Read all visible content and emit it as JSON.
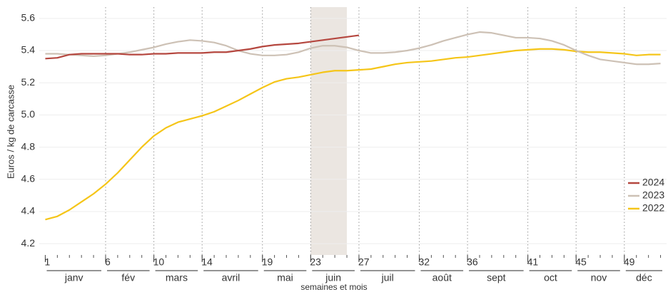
{
  "chart_data": {
    "type": "line",
    "ylabel": "Euros / kg de carcasse",
    "xlabel": "semaines et mois",
    "x": [
      1,
      2,
      3,
      4,
      5,
      6,
      7,
      8,
      9,
      10,
      11,
      12,
      13,
      14,
      15,
      16,
      17,
      18,
      19,
      20,
      21,
      22,
      23,
      24,
      25,
      26,
      27,
      28,
      29,
      30,
      31,
      32,
      33,
      34,
      35,
      36,
      37,
      38,
      39,
      40,
      41,
      42,
      43,
      44,
      45,
      46,
      47,
      48,
      49,
      50,
      51,
      52
    ],
    "series": [
      {
        "name": "2024",
        "color": "#b5473f",
        "values": [
          5.35,
          5.355,
          5.375,
          5.38,
          5.38,
          5.38,
          5.38,
          5.375,
          5.375,
          5.38,
          5.38,
          5.385,
          5.385,
          5.385,
          5.39,
          5.39,
          5.4,
          5.41,
          5.425,
          5.435,
          5.44,
          5.445,
          5.455,
          5.465,
          5.475,
          5.485,
          5.495,
          null,
          null,
          null,
          null,
          null,
          null,
          null,
          null,
          null,
          null,
          null,
          null,
          null,
          null,
          null,
          null,
          null,
          null,
          null,
          null,
          null,
          null,
          null,
          null,
          null
        ]
      },
      {
        "name": "2023",
        "color": "#cdc1b5",
        "values": [
          5.38,
          5.38,
          5.375,
          5.37,
          5.365,
          5.37,
          5.38,
          5.39,
          5.405,
          5.42,
          5.44,
          5.455,
          5.465,
          5.46,
          5.45,
          5.43,
          5.4,
          5.38,
          5.37,
          5.37,
          5.375,
          5.39,
          5.415,
          5.43,
          5.43,
          5.42,
          5.4,
          5.385,
          5.385,
          5.39,
          5.4,
          5.415,
          5.435,
          5.46,
          5.48,
          5.5,
          5.515,
          5.51,
          5.495,
          5.48,
          5.48,
          5.475,
          5.46,
          5.435,
          5.4,
          5.37,
          5.345,
          5.335,
          5.325,
          5.315,
          5.315,
          5.32
        ]
      },
      {
        "name": "2022",
        "color": "#f5c518",
        "values": [
          4.35,
          4.37,
          4.41,
          4.46,
          4.51,
          4.57,
          4.64,
          4.72,
          4.8,
          4.87,
          4.92,
          4.955,
          4.975,
          4.995,
          5.02,
          5.055,
          5.09,
          5.13,
          5.17,
          5.205,
          5.225,
          5.235,
          5.25,
          5.265,
          5.275,
          5.275,
          5.28,
          5.285,
          5.3,
          5.315,
          5.325,
          5.33,
          5.335,
          5.345,
          5.355,
          5.36,
          5.37,
          5.38,
          5.39,
          5.4,
          5.405,
          5.41,
          5.41,
          5.405,
          5.395,
          5.39,
          5.39,
          5.385,
          5.38,
          5.37,
          5.375,
          5.375
        ]
      }
    ],
    "xlim": [
      0.5,
      52.5
    ],
    "xticks": [
      1,
      6,
      10,
      14,
      19,
      23,
      27,
      32,
      36,
      41,
      45,
      49
    ],
    "months": [
      "janv",
      "fév",
      "mars",
      "avril",
      "mai",
      "juin",
      "juil",
      "août",
      "sept",
      "oct",
      "nov",
      "déc"
    ],
    "shade": [
      23,
      26
    ],
    "ylim": [
      4.13,
      5.67
    ],
    "yticks": [
      4.2,
      4.4,
      4.6,
      4.8,
      {
        "value": 5.0,
        "label": "5.0"
      },
      5.2,
      5.4,
      5.6
    ],
    "grid": true,
    "legend": "right"
  }
}
